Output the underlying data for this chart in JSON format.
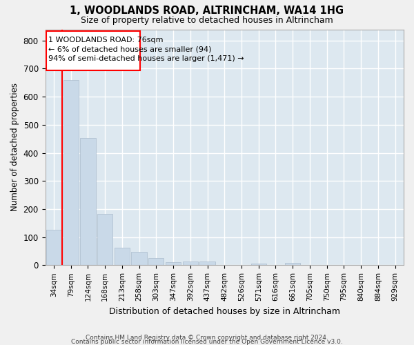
{
  "title": "1, WOODLANDS ROAD, ALTRINCHAM, WA14 1HG",
  "subtitle": "Size of property relative to detached houses in Altrincham",
  "xlabel": "Distribution of detached houses by size in Altrincham",
  "ylabel": "Number of detached properties",
  "categories": [
    "34sqm",
    "79sqm",
    "124sqm",
    "168sqm",
    "213sqm",
    "258sqm",
    "303sqm",
    "347sqm",
    "392sqm",
    "437sqm",
    "482sqm",
    "526sqm",
    "571sqm",
    "616sqm",
    "661sqm",
    "705sqm",
    "750sqm",
    "795sqm",
    "840sqm",
    "884sqm",
    "929sqm"
  ],
  "values": [
    127,
    660,
    453,
    183,
    63,
    48,
    25,
    10,
    13,
    13,
    0,
    0,
    6,
    0,
    7,
    0,
    0,
    0,
    0,
    0,
    0
  ],
  "bar_color": "#c9d9e8",
  "bar_edge_color": "#aabbcc",
  "annotation_line1": "1 WOODLANDS ROAD: 76sqm",
  "annotation_line2": "← 6% of detached houses are smaller (94)",
  "annotation_line3": "94% of semi-detached houses are larger (1,471) →",
  "red_line_x": 0.5,
  "ylim": [
    0,
    840
  ],
  "yticks": [
    0,
    100,
    200,
    300,
    400,
    500,
    600,
    700,
    800
  ],
  "background_color": "#dde8f0",
  "grid_color": "#ffffff",
  "footer_line1": "Contains HM Land Registry data © Crown copyright and database right 2024.",
  "footer_line2": "Contains public sector information licensed under the Open Government Licence v3.0."
}
